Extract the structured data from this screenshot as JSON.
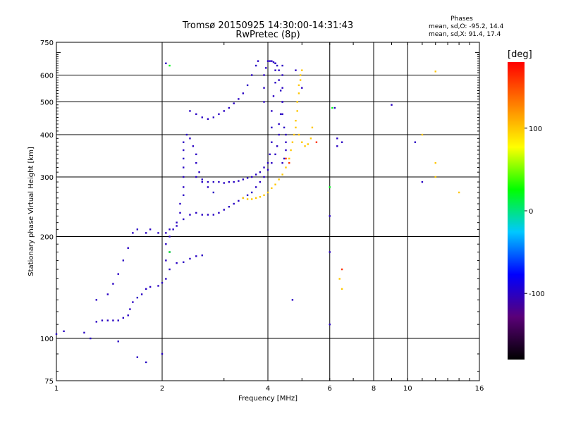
{
  "chart_data": {
    "type": "scatter",
    "title": "Tromsø 20150925 14:30:00-14:31:43",
    "subtitle": "RwPretec (8p)",
    "xlabel": "Frequency [MHz]",
    "ylabel": "Stationary phase Virtual Height [km]",
    "x_scale": "log",
    "y_scale": "log",
    "xlim": [
      1,
      16
    ],
    "ylim": [
      75,
      750
    ],
    "x_ticks": [
      1,
      2,
      4,
      6,
      8,
      10,
      16
    ],
    "y_ticks": [
      75,
      100,
      200,
      300,
      400,
      500,
      600,
      750
    ],
    "grid": true,
    "legend": {
      "title": "Phases",
      "lines": [
        "mean, sd,O: -95.2, 14.4",
        "mean, sd,X:  91.4, 17.4"
      ],
      "placement": "top-right"
    },
    "colorbar": {
      "label": "[deg]",
      "ticks": [
        100,
        0,
        -100
      ],
      "range": [
        -180,
        180
      ],
      "colors": [
        "#000000",
        "#5a0078",
        "#0000ff",
        "#00c8ff",
        "#00ff00",
        "#ffff00",
        "#ff8000",
        "#ff0000"
      ],
      "placement": "right"
    },
    "series": [
      {
        "phase": -100,
        "points": [
          [
            1.0,
            103
          ],
          [
            1.05,
            105
          ],
          [
            1.2,
            104
          ],
          [
            1.3,
            112
          ],
          [
            1.35,
            113
          ],
          [
            1.4,
            113
          ],
          [
            1.45,
            113
          ],
          [
            1.5,
            113
          ],
          [
            1.55,
            115
          ],
          [
            1.6,
            117
          ],
          [
            1.62,
            122
          ],
          [
            1.65,
            128
          ],
          [
            1.7,
            132
          ],
          [
            1.75,
            135
          ],
          [
            1.8,
            140
          ],
          [
            1.85,
            142
          ],
          [
            1.95,
            143
          ],
          [
            2.0,
            146
          ],
          [
            2.05,
            150
          ],
          [
            2.1,
            160
          ],
          [
            2.05,
            170
          ],
          [
            2.1,
            180
          ],
          [
            2.05,
            190
          ],
          [
            2.1,
            200
          ],
          [
            2.15,
            210
          ],
          [
            2.2,
            220
          ],
          [
            2.25,
            235
          ],
          [
            2.25,
            250
          ],
          [
            2.3,
            265
          ],
          [
            2.3,
            280
          ],
          [
            2.3,
            300
          ],
          [
            2.3,
            320
          ],
          [
            2.3,
            340
          ],
          [
            2.3,
            360
          ],
          [
            2.3,
            380
          ],
          [
            2.35,
            400
          ],
          [
            2.4,
            390
          ],
          [
            2.45,
            370
          ],
          [
            2.5,
            350
          ],
          [
            2.5,
            330
          ],
          [
            2.55,
            310
          ],
          [
            2.6,
            290
          ],
          [
            2.7,
            280
          ],
          [
            2.8,
            270
          ]
        ]
      },
      {
        "phase": -100,
        "points": [
          [
            1.3,
            130
          ],
          [
            1.4,
            135
          ],
          [
            1.45,
            145
          ],
          [
            1.5,
            155
          ],
          [
            1.55,
            170
          ],
          [
            1.6,
            185
          ],
          [
            1.65,
            205
          ],
          [
            1.7,
            210
          ],
          [
            1.8,
            205
          ],
          [
            1.85,
            210
          ],
          [
            1.95,
            205
          ],
          [
            2.05,
            205
          ],
          [
            2.1,
            210
          ],
          [
            2.2,
            215
          ],
          [
            2.3,
            225
          ],
          [
            2.4,
            232
          ],
          [
            2.5,
            235
          ],
          [
            2.6,
            232
          ],
          [
            2.7,
            232
          ],
          [
            2.8,
            232
          ],
          [
            2.9,
            235
          ],
          [
            3.0,
            240
          ],
          [
            3.1,
            245
          ],
          [
            3.2,
            250
          ],
          [
            3.3,
            255
          ],
          [
            3.4,
            260
          ],
          [
            3.5,
            265
          ],
          [
            3.6,
            270
          ],
          [
            3.7,
            280
          ],
          [
            3.8,
            290
          ],
          [
            3.9,
            300
          ],
          [
            4.0,
            315
          ],
          [
            4.1,
            330
          ],
          [
            4.2,
            350
          ],
          [
            4.25,
            370
          ],
          [
            4.3,
            400
          ],
          [
            4.3,
            430
          ],
          [
            4.35,
            460
          ],
          [
            4.4,
            500
          ],
          [
            4.4,
            550
          ],
          [
            4.4,
            600
          ],
          [
            4.4,
            640
          ]
        ]
      },
      {
        "phase": -100,
        "points": [
          [
            2.4,
            470
          ],
          [
            2.5,
            460
          ],
          [
            2.6,
            450
          ],
          [
            2.7,
            445
          ],
          [
            2.8,
            450
          ],
          [
            2.9,
            460
          ],
          [
            3.0,
            470
          ],
          [
            3.1,
            480
          ],
          [
            3.2,
            495
          ],
          [
            3.3,
            510
          ],
          [
            3.4,
            530
          ],
          [
            3.5,
            560
          ],
          [
            3.6,
            600
          ],
          [
            3.7,
            640
          ],
          [
            3.75,
            660
          ]
        ]
      },
      {
        "phase": -100,
        "points": [
          [
            2.5,
            300
          ],
          [
            2.6,
            295
          ],
          [
            2.7,
            290
          ],
          [
            2.8,
            290
          ],
          [
            2.9,
            290
          ],
          [
            3.0,
            288
          ],
          [
            3.1,
            290
          ],
          [
            3.2,
            290
          ],
          [
            3.3,
            292
          ],
          [
            3.4,
            295
          ],
          [
            3.5,
            298
          ],
          [
            3.6,
            300
          ],
          [
            3.7,
            305
          ],
          [
            3.8,
            310
          ],
          [
            3.9,
            320
          ],
          [
            4.0,
            330
          ],
          [
            4.05,
            350
          ],
          [
            4.1,
            380
          ],
          [
            4.1,
            420
          ],
          [
            4.1,
            470
          ],
          [
            4.15,
            520
          ],
          [
            4.2,
            570
          ],
          [
            4.2,
            620
          ],
          [
            4.2,
            650
          ]
        ]
      },
      {
        "phase": -100,
        "points": [
          [
            3.9,
            500
          ],
          [
            3.9,
            550
          ],
          [
            3.9,
            600
          ],
          [
            3.95,
            630
          ],
          [
            4.0,
            660
          ],
          [
            4.05,
            660
          ],
          [
            4.1,
            660
          ],
          [
            4.15,
            655
          ],
          [
            4.2,
            650
          ],
          [
            4.25,
            640
          ],
          [
            4.3,
            620
          ],
          [
            4.3,
            580
          ],
          [
            4.35,
            540
          ],
          [
            4.4,
            500
          ],
          [
            4.4,
            460
          ],
          [
            4.45,
            420
          ],
          [
            4.5,
            400
          ],
          [
            4.5,
            380
          ],
          [
            4.5,
            360
          ],
          [
            4.45,
            340
          ],
          [
            4.4,
            330
          ]
        ]
      },
      {
        "phase": -100,
        "points": [
          [
            2.2,
            167
          ],
          [
            2.3,
            168
          ],
          [
            2.4,
            172
          ],
          [
            2.5,
            175
          ],
          [
            2.6,
            176
          ]
        ]
      },
      {
        "phase": 100,
        "points": [
          [
            3.4,
            260
          ],
          [
            3.5,
            258
          ],
          [
            3.6,
            258
          ],
          [
            3.7,
            260
          ],
          [
            3.8,
            262
          ],
          [
            3.9,
            265
          ],
          [
            4.0,
            270
          ],
          [
            4.1,
            278
          ],
          [
            4.2,
            285
          ],
          [
            4.3,
            295
          ],
          [
            4.4,
            305
          ],
          [
            4.5,
            320
          ],
          [
            4.6,
            340
          ],
          [
            4.65,
            360
          ],
          [
            4.7,
            380
          ],
          [
            4.75,
            400
          ],
          [
            4.8,
            420
          ],
          [
            4.8,
            440
          ],
          [
            4.85,
            470
          ],
          [
            4.85,
            500
          ],
          [
            4.9,
            530
          ],
          [
            4.9,
            560
          ],
          [
            4.95,
            580
          ],
          [
            4.95,
            600
          ],
          [
            5.0,
            620
          ]
        ]
      },
      {
        "phase": 100,
        "points": [
          [
            4.9,
            400
          ],
          [
            5.0,
            380
          ],
          [
            5.1,
            370
          ],
          [
            5.2,
            375
          ],
          [
            5.3,
            390
          ],
          [
            5.35,
            420
          ]
        ]
      },
      {
        "phase": 100,
        "points": [
          [
            12.0,
            615
          ],
          [
            11.0,
            400
          ],
          [
            12.0,
            300
          ],
          [
            12.0,
            330
          ],
          [
            14.0,
            270
          ],
          [
            6.5,
            140
          ],
          [
            6.4,
            150
          ]
        ]
      },
      {
        "phase": -100,
        "points": [
          [
            6.2,
            480
          ],
          [
            6.3,
            390
          ],
          [
            6.3,
            370
          ],
          [
            6.5,
            380
          ],
          [
            9.0,
            490
          ],
          [
            10.5,
            380
          ],
          [
            11.0,
            290
          ],
          [
            6.0,
            230
          ],
          [
            6.0,
            180
          ],
          [
            6.0,
            110
          ],
          [
            4.7,
            130
          ],
          [
            5.0,
            550
          ],
          [
            4.8,
            620
          ],
          [
            2.0,
            90
          ],
          [
            1.8,
            85
          ],
          [
            1.7,
            88
          ],
          [
            1.5,
            98
          ],
          [
            1.25,
            100
          ],
          [
            2.05,
            650
          ]
        ]
      },
      {
        "phase": 160,
        "points": [
          [
            6.5,
            160
          ],
          [
            4.5,
            340
          ],
          [
            4.6,
            330
          ],
          [
            5.5,
            380
          ]
        ]
      },
      {
        "phase": 20,
        "points": [
          [
            2.1,
            640
          ],
          [
            2.1,
            180
          ],
          [
            6.0,
            280
          ],
          [
            6.1,
            480
          ]
        ]
      }
    ]
  }
}
